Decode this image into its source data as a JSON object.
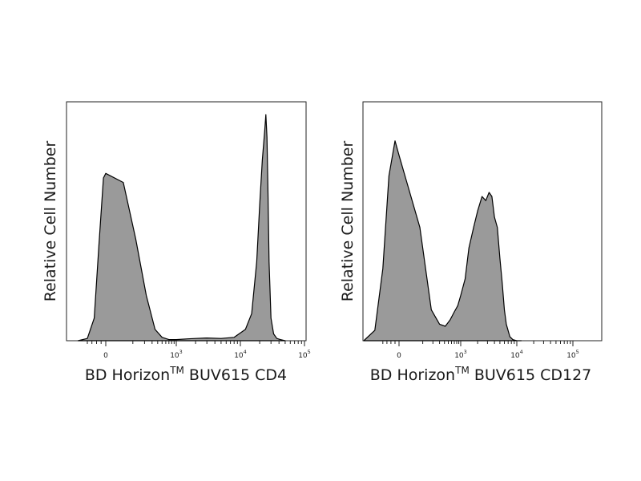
{
  "chart_data": [
    {
      "type": "area",
      "title": "",
      "ylabel": "Relative Cell Number",
      "xlabel": {
        "prefix": "BD Horizon",
        "superscript": "TM",
        "suffix": " BUV615 CD4"
      },
      "x_scale": "biexponential (logicle)",
      "x_tick_labels": [
        {
          "base": "0",
          "exp": ""
        },
        {
          "base": "10",
          "exp": "3"
        },
        {
          "base": "10",
          "exp": "4"
        },
        {
          "base": "10",
          "exp": "5"
        }
      ],
      "fill_color": "#9a9a9a",
      "line_color": "#000000",
      "grid": false,
      "series": [
        {
          "x": [
            -600,
            -400,
            -250,
            -150,
            -50,
            0,
            50,
            120,
            220,
            350,
            500,
            700,
            1000,
            1500,
            2000,
            3000,
            5000,
            8000,
            12000,
            15000,
            18000,
            20000,
            22000,
            24000,
            25000,
            26000,
            27000,
            28000,
            30000,
            33000,
            37000,
            42000,
            50000
          ],
          "y": [
            0,
            0.01,
            0.1,
            0.42,
            0.72,
            0.74,
            0.7,
            0.45,
            0.2,
            0.05,
            0.015,
            0.005,
            0.005,
            0.008,
            0.01,
            0.012,
            0.01,
            0.015,
            0.05,
            0.12,
            0.35,
            0.6,
            0.8,
            0.93,
            1.0,
            0.9,
            0.65,
            0.35,
            0.1,
            0.03,
            0.01,
            0.005,
            0
          ]
        }
      ]
    },
    {
      "type": "area",
      "title": "",
      "ylabel": "Relative Cell Number",
      "xlabel": {
        "prefix": "BD Horizon",
        "superscript": "TM",
        "suffix": " BUV615 CD127"
      },
      "x_scale": "biexponential (logicle)",
      "x_tick_labels": [
        {
          "base": "0",
          "exp": ""
        },
        {
          "base": "10",
          "exp": "3"
        },
        {
          "base": "10",
          "exp": "4"
        },
        {
          "base": "10",
          "exp": "5"
        }
      ],
      "fill_color": "#9a9a9a",
      "line_color": "#000000",
      "grid": false,
      "series": [
        {
          "x": [
            -900,
            -600,
            -400,
            -250,
            -100,
            0,
            80,
            180,
            300,
            420,
            550,
            700,
            850,
            1000,
            1200,
            1400,
            1700,
            2000,
            2400,
            2800,
            3200,
            3600,
            4000,
            4500,
            5000,
            5500,
            6000,
            6500,
            7500,
            8500,
            10000,
            12000
          ],
          "y": [
            0.0,
            0.05,
            0.35,
            0.8,
            0.97,
            0.9,
            0.55,
            0.15,
            0.08,
            0.07,
            0.1,
            0.14,
            0.17,
            0.22,
            0.3,
            0.45,
            0.55,
            0.63,
            0.7,
            0.68,
            0.72,
            0.7,
            0.6,
            0.55,
            0.4,
            0.28,
            0.15,
            0.08,
            0.02,
            0.005,
            0.0,
            0.0
          ]
        }
      ]
    }
  ]
}
